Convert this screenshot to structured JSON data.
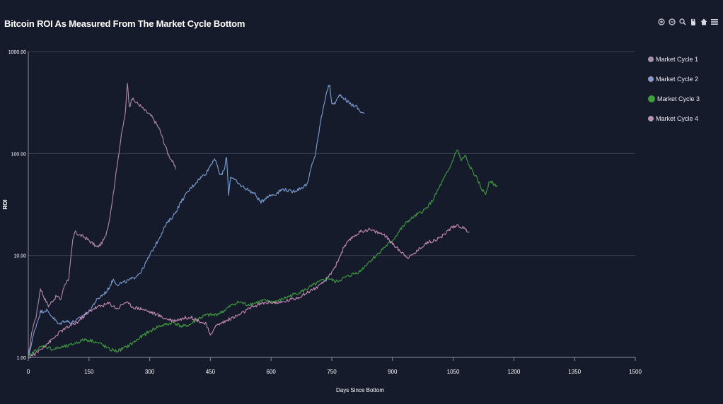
{
  "chart_data": {
    "type": "line",
    "title": "Bitcoin ROI As Measured From The Market Cycle Bottom",
    "xlabel": "Days Since Bottom",
    "ylabel": "ROI",
    "xlim": [
      0,
      1500
    ],
    "ylim": [
      1,
      1000
    ],
    "yscale": "log",
    "xticks": [
      "0",
      "150",
      "300",
      "450",
      "600",
      "750",
      "900",
      "1050",
      "1200",
      "1350",
      "1500"
    ],
    "yticks": [
      "1.00",
      "10.00",
      "100.00",
      "1000.00"
    ],
    "grid": "horizontal",
    "legend_position": "right",
    "series": [
      {
        "name": "Market Cycle 1",
        "color": "#b08aa8",
        "points": [
          [
            0,
            1.0
          ],
          [
            10,
            1.9
          ],
          [
            20,
            2.6
          ],
          [
            30,
            4.8
          ],
          [
            40,
            3.8
          ],
          [
            50,
            3.2
          ],
          [
            60,
            3.6
          ],
          [
            70,
            4.0
          ],
          [
            80,
            3.7
          ],
          [
            90,
            5.2
          ],
          [
            100,
            6.0
          ],
          [
            110,
            14
          ],
          [
            115,
            17
          ],
          [
            125,
            16
          ],
          [
            140,
            15
          ],
          [
            150,
            14
          ],
          [
            160,
            13
          ],
          [
            170,
            12
          ],
          [
            180,
            13
          ],
          [
            190,
            15
          ],
          [
            200,
            22
          ],
          [
            210,
            40
          ],
          [
            220,
            80
          ],
          [
            230,
            150
          ],
          [
            240,
            250
          ],
          [
            245,
            500
          ],
          [
            250,
            280
          ],
          [
            255,
            350
          ],
          [
            265,
            320
          ],
          [
            275,
            300
          ],
          [
            285,
            270
          ],
          [
            295,
            250
          ],
          [
            305,
            230
          ],
          [
            315,
            200
          ],
          [
            325,
            170
          ],
          [
            335,
            130
          ],
          [
            345,
            100
          ],
          [
            355,
            85
          ],
          [
            365,
            70
          ]
        ]
      },
      {
        "name": "Market Cycle 2",
        "color": "#7b9fd4",
        "points": [
          [
            0,
            1.0
          ],
          [
            15,
            1.8
          ],
          [
            30,
            2.8
          ],
          [
            45,
            2.9
          ],
          [
            60,
            2.5
          ],
          [
            75,
            2.1
          ],
          [
            90,
            2.3
          ],
          [
            105,
            2.2
          ],
          [
            120,
            2.3
          ],
          [
            135,
            2.6
          ],
          [
            150,
            2.8
          ],
          [
            165,
            3.5
          ],
          [
            180,
            4.0
          ],
          [
            195,
            4.5
          ],
          [
            210,
            5.8
          ],
          [
            220,
            5.2
          ],
          [
            240,
            5.5
          ],
          [
            260,
            6.0
          ],
          [
            280,
            7.0
          ],
          [
            300,
            10
          ],
          [
            320,
            14
          ],
          [
            340,
            20
          ],
          [
            360,
            25
          ],
          [
            380,
            35
          ],
          [
            400,
            45
          ],
          [
            420,
            55
          ],
          [
            440,
            65
          ],
          [
            460,
            90
          ],
          [
            475,
            60
          ],
          [
            485,
            70
          ],
          [
            490,
            95
          ],
          [
            495,
            40
          ],
          [
            500,
            60
          ],
          [
            520,
            50
          ],
          [
            540,
            45
          ],
          [
            560,
            40
          ],
          [
            575,
            33
          ],
          [
            590,
            38
          ],
          [
            610,
            40
          ],
          [
            630,
            45
          ],
          [
            650,
            42
          ],
          [
            670,
            45
          ],
          [
            690,
            50
          ],
          [
            700,
            75
          ],
          [
            710,
            100
          ],
          [
            720,
            180
          ],
          [
            730,
            300
          ],
          [
            740,
            430
          ],
          [
            745,
            480
          ],
          [
            750,
            300
          ],
          [
            760,
            320
          ],
          [
            770,
            380
          ],
          [
            780,
            350
          ],
          [
            790,
            320
          ],
          [
            800,
            300
          ],
          [
            810,
            290
          ],
          [
            820,
            260
          ],
          [
            830,
            245
          ]
        ]
      },
      {
        "name": "Market Cycle 3",
        "color": "#3f9e3f",
        "points": [
          [
            0,
            1.0
          ],
          [
            20,
            1.2
          ],
          [
            40,
            1.3
          ],
          [
            60,
            1.2
          ],
          [
            80,
            1.25
          ],
          [
            100,
            1.3
          ],
          [
            120,
            1.4
          ],
          [
            140,
            1.5
          ],
          [
            160,
            1.45
          ],
          [
            180,
            1.35
          ],
          [
            200,
            1.2
          ],
          [
            220,
            1.15
          ],
          [
            240,
            1.25
          ],
          [
            260,
            1.4
          ],
          [
            280,
            1.6
          ],
          [
            300,
            1.8
          ],
          [
            320,
            2.0
          ],
          [
            340,
            2.1
          ],
          [
            360,
            2.2
          ],
          [
            380,
            2.0
          ],
          [
            400,
            2.1
          ],
          [
            420,
            2.4
          ],
          [
            440,
            2.6
          ],
          [
            460,
            2.6
          ],
          [
            480,
            2.8
          ],
          [
            500,
            3.2
          ],
          [
            520,
            3.5
          ],
          [
            540,
            3.3
          ],
          [
            560,
            3.4
          ],
          [
            580,
            3.6
          ],
          [
            600,
            3.5
          ],
          [
            620,
            3.6
          ],
          [
            640,
            3.9
          ],
          [
            660,
            4.2
          ],
          [
            680,
            4.5
          ],
          [
            700,
            5.0
          ],
          [
            720,
            5.5
          ],
          [
            740,
            6.0
          ],
          [
            760,
            5.5
          ],
          [
            780,
            6.0
          ],
          [
            800,
            6.5
          ],
          [
            820,
            7.0
          ],
          [
            840,
            8.5
          ],
          [
            860,
            10
          ],
          [
            880,
            12
          ],
          [
            900,
            14
          ],
          [
            920,
            18
          ],
          [
            940,
            22
          ],
          [
            960,
            25
          ],
          [
            980,
            28
          ],
          [
            1000,
            35
          ],
          [
            1020,
            50
          ],
          [
            1040,
            70
          ],
          [
            1060,
            110
          ],
          [
            1070,
            85
          ],
          [
            1080,
            95
          ],
          [
            1090,
            75
          ],
          [
            1100,
            65
          ],
          [
            1110,
            55
          ],
          [
            1120,
            45
          ],
          [
            1130,
            40
          ],
          [
            1140,
            55
          ],
          [
            1150,
            50
          ],
          [
            1160,
            48
          ]
        ]
      },
      {
        "name": "Market Cycle 4",
        "color": "#c68ab4",
        "points": [
          [
            0,
            1.0
          ],
          [
            20,
            1.1
          ],
          [
            40,
            1.3
          ],
          [
            60,
            1.5
          ],
          [
            80,
            1.8
          ],
          [
            100,
            2.0
          ],
          [
            120,
            2.2
          ],
          [
            140,
            2.6
          ],
          [
            160,
            3.0
          ],
          [
            180,
            3.2
          ],
          [
            200,
            3.4
          ],
          [
            220,
            3.0
          ],
          [
            240,
            3.5
          ],
          [
            260,
            3.1
          ],
          [
            280,
            3.0
          ],
          [
            300,
            2.8
          ],
          [
            320,
            2.6
          ],
          [
            340,
            2.4
          ],
          [
            360,
            2.3
          ],
          [
            380,
            2.4
          ],
          [
            400,
            2.5
          ],
          [
            420,
            2.3
          ],
          [
            440,
            2.1
          ],
          [
            450,
            1.6
          ],
          [
            460,
            2.0
          ],
          [
            480,
            2.2
          ],
          [
            500,
            2.4
          ],
          [
            520,
            2.6
          ],
          [
            540,
            2.9
          ],
          [
            560,
            3.2
          ],
          [
            580,
            3.4
          ],
          [
            600,
            3.5
          ],
          [
            620,
            3.4
          ],
          [
            640,
            3.6
          ],
          [
            660,
            3.8
          ],
          [
            680,
            4.1
          ],
          [
            700,
            4.6
          ],
          [
            720,
            5.0
          ],
          [
            740,
            6.0
          ],
          [
            760,
            8.0
          ],
          [
            780,
            12
          ],
          [
            800,
            15
          ],
          [
            820,
            17
          ],
          [
            840,
            18
          ],
          [
            860,
            17
          ],
          [
            880,
            16
          ],
          [
            900,
            13
          ],
          [
            920,
            11
          ],
          [
            940,
            9.5
          ],
          [
            960,
            11
          ],
          [
            980,
            13
          ],
          [
            1000,
            14
          ],
          [
            1020,
            15
          ],
          [
            1040,
            18
          ],
          [
            1060,
            20
          ],
          [
            1080,
            18
          ],
          [
            1090,
            17
          ]
        ]
      }
    ]
  }
}
